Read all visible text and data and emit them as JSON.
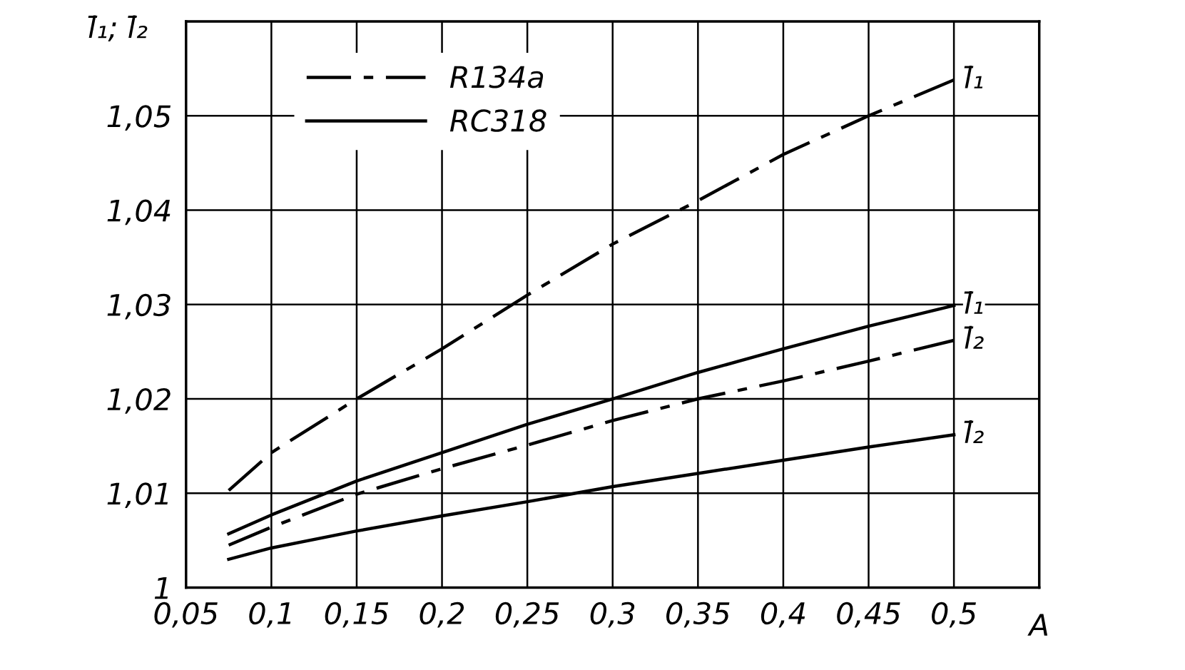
{
  "chart_data": {
    "type": "line",
    "xlabel": "A",
    "ylabel": "l̄₁; l̄₂",
    "x": [
      0.075,
      0.1,
      0.15,
      0.2,
      0.25,
      0.3,
      0.35,
      0.4,
      0.45,
      0.5
    ],
    "series": [
      {
        "name": "R134a",
        "color": "#000000",
        "line_style": "dashed",
        "values": [
          1.0103,
          1.0143,
          1.02,
          1.0253,
          1.031,
          1.0364,
          1.041,
          1.0459,
          1.05,
          1.0538
        ]
      },
      {
        "name": "RC318",
        "color": "#000000",
        "line_style": "solid",
        "values": [
          1.0057,
          1.0077,
          1.0113,
          1.0143,
          1.0173,
          1.02,
          1.0228,
          1.0253,
          1.0277,
          1.0299
        ]
      },
      {
        "color": "#000000",
        "line_style": "dashed",
        "values": [
          1.0045,
          1.0064,
          1.0099,
          1.0126,
          1.0151,
          1.0177,
          1.02,
          1.0219,
          1.024,
          1.0262
        ]
      },
      {
        "color": "#000000",
        "line_style": "solid",
        "values": [
          1.003,
          1.0042,
          1.006,
          1.0076,
          1.0091,
          1.0107,
          1.0121,
          1.0135,
          1.0149,
          1.0162
        ]
      }
    ],
    "annotations": [
      {
        "text": "l̄₁",
        "y": 1.0538
      },
      {
        "text": "l̄₁",
        "y": 1.0299
      },
      {
        "text": "l̄₂",
        "y": 1.0262
      },
      {
        "text": "l̄₂",
        "y": 1.0162
      }
    ],
    "xlim": [
      0.05,
      0.55
    ],
    "ylim": [
      1.0,
      1.06
    ],
    "xticks": [
      {
        "value": 0.05,
        "label": "0,05"
      },
      {
        "value": 0.1,
        "label": "0,1"
      },
      {
        "value": 0.15,
        "label": "0,15"
      },
      {
        "value": 0.2,
        "label": "0,2"
      },
      {
        "value": 0.25,
        "label": "0,25"
      },
      {
        "value": 0.3,
        "label": "0,3"
      },
      {
        "value": 0.35,
        "label": "0,35"
      },
      {
        "value": 0.4,
        "label": "0,4"
      },
      {
        "value": 0.45,
        "label": "0,45"
      },
      {
        "value": 0.5,
        "label": "0,5"
      },
      {
        "value": 0.55,
        "label": null
      }
    ],
    "yticks": [
      {
        "value": 1.0,
        "label": "1"
      },
      {
        "value": 1.01,
        "label": "1,01"
      },
      {
        "value": 1.02,
        "label": "1,02"
      },
      {
        "value": 1.03,
        "label": "1,03"
      },
      {
        "value": 1.04,
        "label": "1,04"
      },
      {
        "value": 1.05,
        "label": "1,05"
      },
      {
        "value": 1.06,
        "label": null
      }
    ],
    "grid": true,
    "legend": "top left"
  }
}
